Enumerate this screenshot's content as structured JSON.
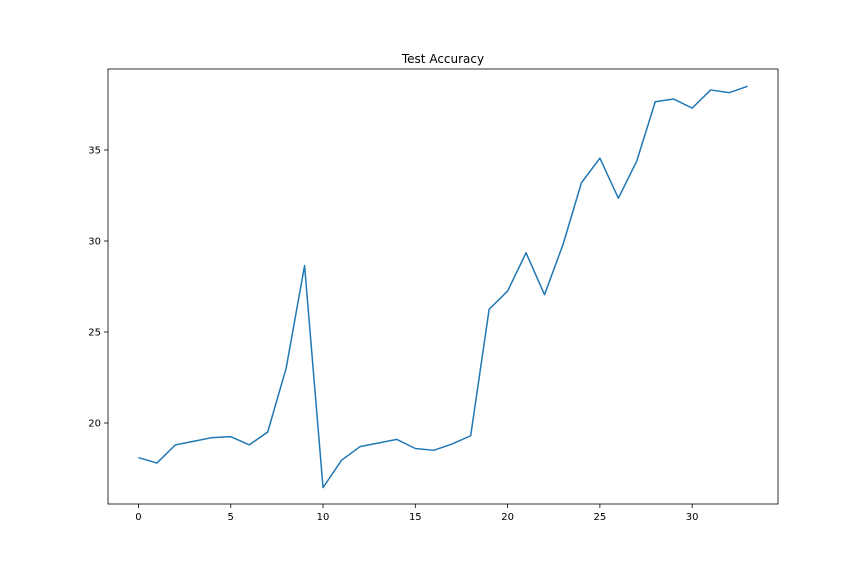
{
  "chart_data": {
    "type": "line",
    "title": "Test Accuracy",
    "xlabel": "",
    "ylabel": "",
    "xlim": [
      -1.65,
      34.65
    ],
    "ylim": [
      15.55,
      39.45
    ],
    "xticks": [
      0,
      5,
      10,
      15,
      20,
      25,
      30
    ],
    "yticks": [
      20,
      25,
      30,
      35
    ],
    "grid": false,
    "series_color": "#1f77b4",
    "series": [
      {
        "x": [
          0,
          1,
          2,
          3,
          4,
          5,
          6,
          7,
          8,
          9,
          10,
          11,
          12,
          13,
          14,
          15,
          16,
          17,
          18,
          19,
          20,
          21,
          22,
          23,
          24,
          25,
          26,
          27,
          28,
          29,
          30,
          31,
          32,
          33
        ],
        "values": [
          18.1,
          17.8,
          18.8,
          19.0,
          19.2,
          19.25,
          18.8,
          19.5,
          23.0,
          28.65,
          16.45,
          17.95,
          18.7,
          18.9,
          19.1,
          18.6,
          18.5,
          18.85,
          19.3,
          26.25,
          27.25,
          29.35,
          27.05,
          29.8,
          33.2,
          34.55,
          32.35,
          34.4,
          37.65,
          37.8,
          37.3,
          38.3,
          38.15,
          38.5
        ]
      }
    ]
  }
}
